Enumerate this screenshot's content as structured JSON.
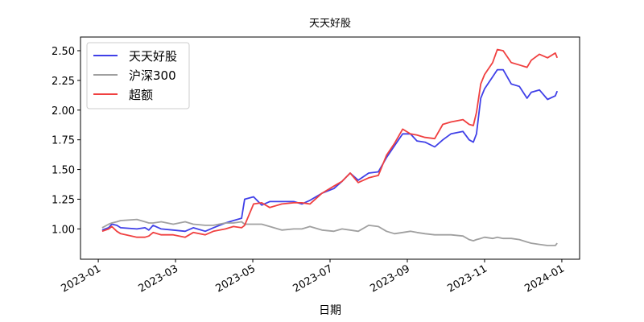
{
  "chart_data": {
    "type": "line",
    "title": "天天好股",
    "xlabel": "日期",
    "x": [
      1.1,
      1.27,
      1.35,
      1.48,
      1.58,
      2.0,
      2.21,
      2.31,
      2.42,
      2.63,
      2.94,
      3.25,
      3.46,
      3.77,
      3.98,
      4.29,
      4.5,
      4.71,
      4.79,
      5.02,
      5.23,
      5.44,
      5.75,
      6.06,
      6.27,
      6.48,
      6.79,
      7.1,
      7.31,
      7.52,
      7.73,
      8.0,
      8.25,
      8.46,
      8.67,
      8.88,
      9.08,
      9.25,
      9.46,
      9.71,
      9.92,
      10.13,
      10.44,
      10.6,
      10.71,
      10.79,
      10.9,
      11.0,
      11.21,
      11.33,
      11.48,
      11.69,
      11.9,
      12.1,
      12.21,
      12.42,
      12.63,
      12.83,
      12.88
    ],
    "series": [
      {
        "name": "天天好股",
        "color": "#4040e8",
        "values": [
          0.99,
          1.01,
          1.04,
          1.03,
          1.01,
          1.0,
          1.01,
          0.99,
          1.03,
          1.0,
          0.99,
          0.98,
          1.01,
          0.98,
          1.01,
          1.05,
          1.07,
          1.09,
          1.25,
          1.27,
          1.2,
          1.23,
          1.23,
          1.23,
          1.21,
          1.24,
          1.3,
          1.34,
          1.4,
          1.47,
          1.41,
          1.47,
          1.48,
          1.6,
          1.7,
          1.8,
          1.8,
          1.74,
          1.73,
          1.69,
          1.75,
          1.8,
          1.82,
          1.75,
          1.73,
          1.8,
          2.1,
          2.18,
          2.28,
          2.34,
          2.34,
          2.22,
          2.2,
          2.1,
          2.15,
          2.17,
          2.09,
          2.12,
          2.16
        ]
      },
      {
        "name": "沪深300",
        "color": "#a0a0a0",
        "values": [
          1.01,
          1.04,
          1.05,
          1.06,
          1.07,
          1.08,
          1.06,
          1.05,
          1.05,
          1.06,
          1.04,
          1.06,
          1.04,
          1.03,
          1.03,
          1.05,
          1.05,
          1.06,
          1.04,
          1.04,
          1.04,
          1.02,
          0.99,
          1.0,
          1.0,
          1.02,
          0.99,
          0.98,
          1.0,
          0.99,
          0.98,
          1.03,
          1.02,
          0.98,
          0.96,
          0.97,
          0.98,
          0.97,
          0.96,
          0.95,
          0.95,
          0.95,
          0.94,
          0.91,
          0.9,
          0.91,
          0.92,
          0.93,
          0.92,
          0.93,
          0.92,
          0.92,
          0.91,
          0.89,
          0.88,
          0.87,
          0.86,
          0.86,
          0.88
        ]
      },
      {
        "name": "超额",
        "color": "#f04040",
        "values": [
          0.98,
          1.0,
          1.02,
          0.98,
          0.96,
          0.93,
          0.93,
          0.94,
          0.97,
          0.95,
          0.95,
          0.93,
          0.97,
          0.95,
          0.98,
          1.0,
          1.02,
          1.01,
          1.03,
          1.21,
          1.22,
          1.18,
          1.21,
          1.22,
          1.22,
          1.21,
          1.3,
          1.36,
          1.4,
          1.47,
          1.39,
          1.43,
          1.45,
          1.62,
          1.72,
          1.84,
          1.8,
          1.79,
          1.77,
          1.76,
          1.88,
          1.9,
          1.92,
          1.88,
          1.87,
          1.98,
          2.22,
          2.3,
          2.4,
          2.51,
          2.5,
          2.4,
          2.38,
          2.36,
          2.42,
          2.47,
          2.44,
          2.48,
          2.44
        ]
      }
    ],
    "xlim": [
      0.54,
      13.46
    ],
    "xticks": [
      {
        "value": 1,
        "label": "2023-01"
      },
      {
        "value": 3,
        "label": "2023-03"
      },
      {
        "value": 5,
        "label": "2023-05"
      },
      {
        "value": 7,
        "label": "2023-07"
      },
      {
        "value": 9,
        "label": "2023-09"
      },
      {
        "value": 11,
        "label": "2023-11"
      },
      {
        "value": 13,
        "label": "2024-01"
      }
    ],
    "ylim": [
      0.745,
      2.615
    ],
    "yticks": [
      {
        "value": 1,
        "label": "1.00"
      },
      {
        "value": 1.25,
        "label": "1.25"
      },
      {
        "value": 1.5,
        "label": "1.50"
      },
      {
        "value": 1.75,
        "label": "1.75"
      },
      {
        "value": 2,
        "label": "2.00"
      },
      {
        "value": 2.25,
        "label": "2.25"
      },
      {
        "value": 2.5,
        "label": "2.50"
      }
    ],
    "legend": "upper left",
    "grid": false
  }
}
